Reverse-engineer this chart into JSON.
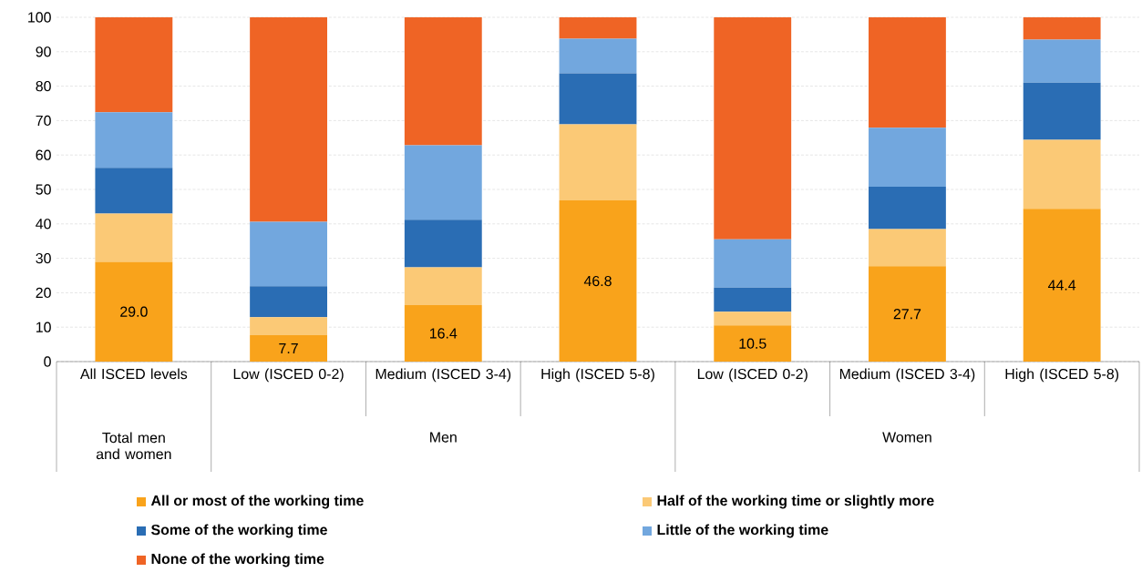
{
  "chart_data": {
    "type": "bar",
    "stacked": true,
    "categories": [
      "All ISCED levels",
      "Low (ISCED 0-2)",
      "Medium (ISCED 3-4)",
      "High (ISCED 5-8)",
      "Low (ISCED 0-2)",
      "Medium (ISCED 3-4)",
      "High (ISCED 5-8)"
    ],
    "series": [
      {
        "name": "All or most of the working time",
        "color": "#f9a31b",
        "values": [
          29.0,
          7.7,
          16.4,
          46.8,
          10.5,
          27.7,
          44.4
        ],
        "value_labels": [
          "29.0",
          "7.7",
          "16.4",
          "46.8",
          "10.5",
          "27.7",
          "44.4"
        ]
      },
      {
        "name": "Half of the working time or slightly more",
        "color": "#fbc976",
        "values": [
          14.0,
          5.2,
          11.0,
          22.1,
          4.0,
          10.8,
          20.0
        ]
      },
      {
        "name": "Some of the working time",
        "color": "#2a6db4",
        "values": [
          13.3,
          9.0,
          13.8,
          14.8,
          7.0,
          12.3,
          16.6
        ]
      },
      {
        "name": "Little of the working time",
        "color": "#72a7de",
        "values": [
          16.1,
          18.7,
          21.6,
          10.1,
          14.0,
          17.1,
          12.5
        ]
      },
      {
        "name": "None of the working time",
        "color": "#ef6425",
        "values": [
          27.6,
          59.4,
          37.2,
          6.2,
          64.5,
          32.1,
          6.5
        ]
      }
    ],
    "ylim": [
      0,
      100
    ],
    "yticks": [
      0,
      10,
      20,
      30,
      40,
      50,
      60,
      70,
      80,
      90,
      100
    ],
    "grid": "y",
    "legend": "bottom",
    "annotations": [
      "Total men and women",
      "Men",
      "Women"
    ]
  }
}
